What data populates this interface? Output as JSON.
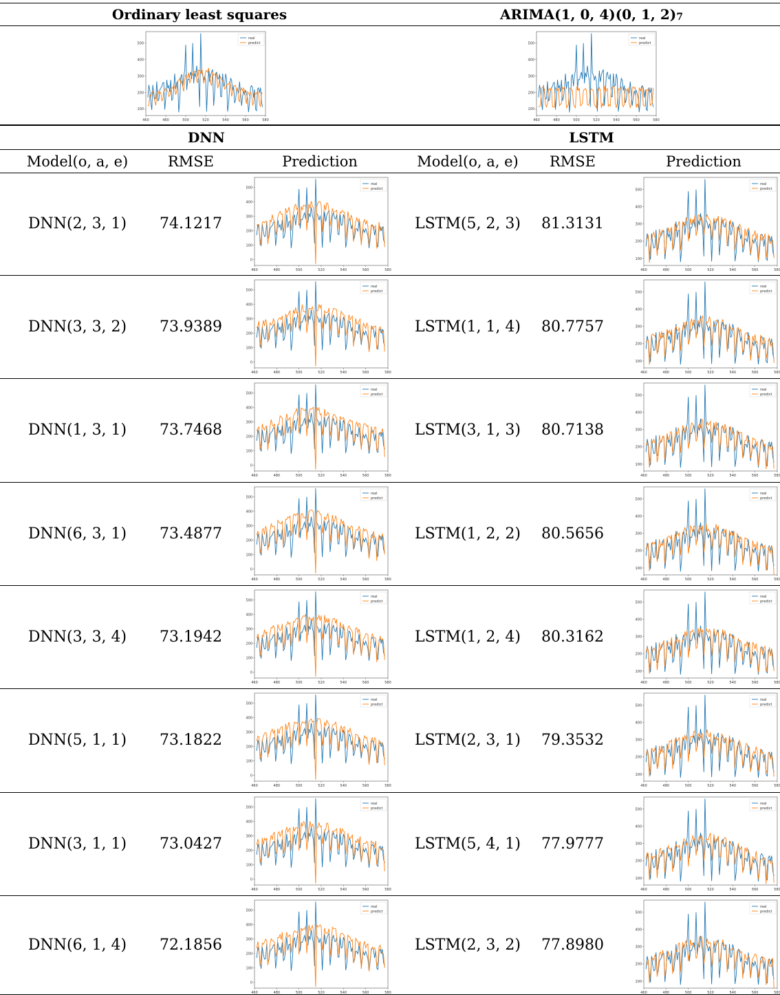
{
  "top": {
    "ols_title": "Ordinary least squares",
    "arima_title_base": "ARIMA",
    "arima_title_order": "(1, 0, 4)(0, 1, 2)",
    "arima_title_sub": "7"
  },
  "groups": {
    "dnn": "DNN",
    "lstm": "LSTM"
  },
  "columns": {
    "model": "Model(o, a, e)",
    "rmse": "RMSE",
    "prediction": "Prediction",
    "model2": "Model(o, a, e)",
    "rmse2": "RMSE",
    "prediction2": "Prediction"
  },
  "rows": [
    {
      "dnn_model": "DNN(2, 3, 1)",
      "dnn_rmse": "74.1217",
      "lstm_model": "LSTM(5, 2, 3)",
      "lstm_rmse": "81.3131"
    },
    {
      "dnn_model": "DNN(3, 3, 2)",
      "dnn_rmse": "73.9389",
      "lstm_model": "LSTM(1, 1, 4)",
      "lstm_rmse": "80.7757"
    },
    {
      "dnn_model": "DNN(1, 3, 1)",
      "dnn_rmse": "73.7468",
      "lstm_model": "LSTM(3, 1, 3)",
      "lstm_rmse": "80.7138"
    },
    {
      "dnn_model": "DNN(6, 3, 1)",
      "dnn_rmse": "73.4877",
      "lstm_model": "LSTM(1, 2, 2)",
      "lstm_rmse": "80.5656"
    },
    {
      "dnn_model": "DNN(3, 3, 4)",
      "dnn_rmse": "73.1942",
      "lstm_model": "LSTM(1, 2, 4)",
      "lstm_rmse": "80.3162"
    },
    {
      "dnn_model": "DNN(5, 1, 1)",
      "dnn_rmse": "73.1822",
      "lstm_model": "LSTM(2, 3, 1)",
      "lstm_rmse": "79.3532"
    },
    {
      "dnn_model": "DNN(3, 1, 1)",
      "dnn_rmse": "73.0427",
      "lstm_model": "LSTM(5, 4, 1)",
      "lstm_rmse": "77.9777"
    },
    {
      "dnn_model": "DNN(6, 1, 4)",
      "dnn_rmse": "72.1856",
      "lstm_model": "LSTM(2, 3, 2)",
      "lstm_rmse": "77.8980"
    }
  ],
  "plot_colors": {
    "real": "#1f77b4",
    "predict": "#ff7f0e"
  },
  "chart_data": {
    "type": "line",
    "x_ticks": [
      460,
      480,
      500,
      520,
      540,
      560,
      580
    ],
    "y_ticks_top": [
      100,
      200,
      300,
      400,
      500
    ],
    "y_ticks_dnn": [
      0,
      100,
      200,
      300,
      400,
      500
    ],
    "legend_entries": [
      "real",
      "predict"
    ],
    "legend_position": "top-right",
    "x_range": [
      460,
      580
    ],
    "y_range_top": [
      60,
      570
    ],
    "y_range_dnn": [
      -40,
      570
    ],
    "series_real_sample": [
      {
        "x": 462,
        "y": 170
      },
      {
        "x": 470,
        "y": 280
      },
      {
        "x": 480,
        "y": 320
      },
      {
        "x": 490,
        "y": 330
      },
      {
        "x": 500,
        "y": 490
      },
      {
        "x": 508,
        "y": 380
      },
      {
        "x": 515,
        "y": 560
      },
      {
        "x": 525,
        "y": 300
      },
      {
        "x": 535,
        "y": 250
      },
      {
        "x": 545,
        "y": 230
      },
      {
        "x": 555,
        "y": 190
      },
      {
        "x": 565,
        "y": 170
      },
      {
        "x": 575,
        "y": 130
      }
    ]
  }
}
